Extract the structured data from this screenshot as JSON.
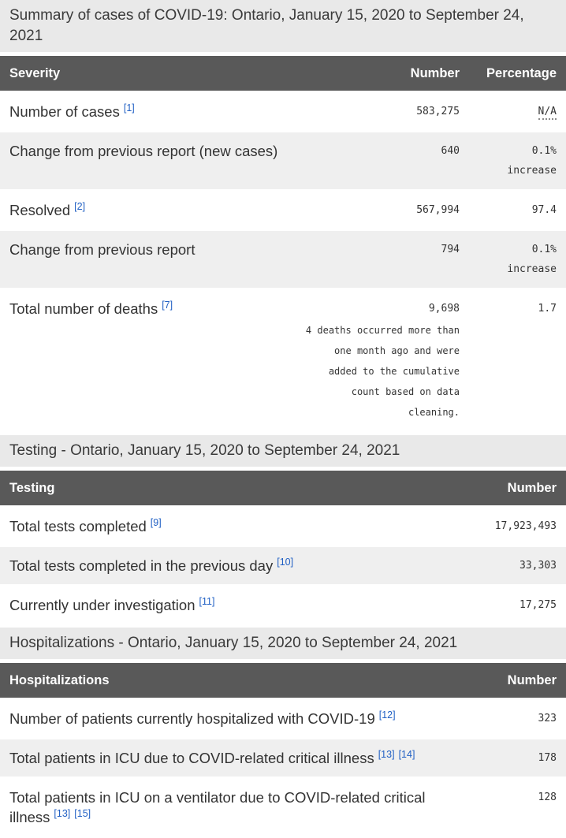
{
  "tables": [
    {
      "caption": "Summary of cases of COVID-19: Ontario, January 15, 2020 to September 24, 2021",
      "columns": [
        "Severity",
        "Number",
        "Percentage"
      ],
      "rows": [
        {
          "label": "Number of cases",
          "footnotes": [
            "[1]"
          ],
          "number": "583,275",
          "percentage": "N/A"
        },
        {
          "label": "Change from previous report (new cases)",
          "footnotes": [],
          "number": "640",
          "percentage": "0.1% increase"
        },
        {
          "label": "Resolved",
          "footnotes": [
            "[2]"
          ],
          "number": "567,994",
          "percentage": "97.4"
        },
        {
          "label": "Change from previous report",
          "footnotes": [],
          "number": "794",
          "percentage": "0.1% increase"
        },
        {
          "label": "Total number of deaths",
          "footnotes": [
            "[7]"
          ],
          "number": "9,698",
          "note": "4 deaths occurred more than one month ago and were added to the cumulative count based on data cleaning.",
          "percentage": "1.7"
        }
      ]
    },
    {
      "caption": "Testing - Ontario, January 15, 2020 to September 24, 2021",
      "columns": [
        "Testing",
        "Number"
      ],
      "rows": [
        {
          "label": "Total tests completed",
          "footnotes": [
            "[9]"
          ],
          "number": "17,923,493"
        },
        {
          "label": "Total tests completed in the previous day",
          "footnotes": [
            "[10]"
          ],
          "number": "33,303"
        },
        {
          "label": "Currently under investigation",
          "footnotes": [
            "[11]"
          ],
          "number": "17,275"
        }
      ]
    },
    {
      "caption": "Hospitalizations - Ontario, January 15, 2020 to September 24, 2021",
      "columns": [
        "Hospitalizations",
        "Number"
      ],
      "rows": [
        {
          "label": "Number of patients currently hospitalized with COVID-19",
          "footnotes": [
            "[12]"
          ],
          "number": "323"
        },
        {
          "label": "Total patients in ICU due to COVID-related critical illness",
          "footnotes": [
            "[13]",
            "[14]"
          ],
          "number": "178"
        },
        {
          "label": "Total patients in ICU on a ventilator due to COVID-related critical illness",
          "footnotes": [
            "[13]",
            "[15]"
          ],
          "number": "128"
        }
      ]
    }
  ],
  "colors": {
    "header_bg": "#595959",
    "caption_bg": "#e9e9e9",
    "row_alt_bg": "#efefef",
    "footnote_link": "#2160c4"
  }
}
